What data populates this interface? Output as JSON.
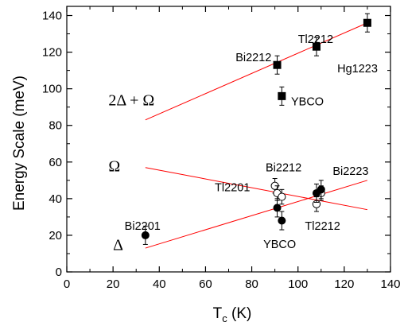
{
  "chart_data": {
    "type": "scatter",
    "xlabel": "T",
    "xlabel_subscript": "c",
    "xlabel_unit": " (K)",
    "ylabel": "Energy Scale (meV)",
    "xlim": [
      0,
      140
    ],
    "ylim": [
      0,
      145
    ],
    "xticks": [
      0,
      20,
      40,
      60,
      80,
      100,
      120,
      140
    ],
    "yticks": [
      0,
      20,
      40,
      60,
      80,
      100,
      120,
      140
    ],
    "grid": false,
    "legend": "none",
    "series": [
      {
        "id": "two_delta_plus_omega",
        "marker": "filled-square",
        "color": "#000000",
        "points": [
          {
            "x": 91,
            "y": 113,
            "err": 5
          },
          {
            "x": 93,
            "y": 96,
            "err": 5
          },
          {
            "x": 108,
            "y": 123,
            "err": 5
          },
          {
            "x": 130,
            "y": 136,
            "err": 5
          }
        ]
      },
      {
        "id": "omega",
        "marker": "open-circle",
        "color": "#000000",
        "points": [
          {
            "x": 90,
            "y": 47,
            "err": 4
          },
          {
            "x": 91,
            "y": 43,
            "err": 4
          },
          {
            "x": 93,
            "y": 41,
            "err": 4
          },
          {
            "x": 108,
            "y": 37,
            "err": 4
          },
          {
            "x": 110,
            "y": 43,
            "err": 4
          }
        ]
      },
      {
        "id": "delta",
        "marker": "filled-circle",
        "color": "#000000",
        "points": [
          {
            "x": 34,
            "y": 20,
            "err": 5
          },
          {
            "x": 91,
            "y": 35,
            "err": 5
          },
          {
            "x": 93,
            "y": 28,
            "err": 5
          },
          {
            "x": 108,
            "y": 43,
            "err": 5
          },
          {
            "x": 110,
            "y": 45,
            "err": 5
          }
        ]
      }
    ],
    "fit_lines": [
      {
        "id": "fit_two_delta_plus_omega",
        "color": "#ff0000",
        "from": [
          34,
          83
        ],
        "to": [
          130,
          136
        ]
      },
      {
        "id": "fit_omega",
        "color": "#ff0000",
        "from": [
          34,
          57
        ],
        "to": [
          130,
          34
        ]
      },
      {
        "id": "fit_delta",
        "color": "#ff0000",
        "from": [
          34,
          13
        ],
        "to": [
          130,
          50
        ]
      }
    ],
    "annotations": [
      {
        "id": "bi2212-top",
        "text": "Bi2212",
        "x": 73,
        "y": 115
      },
      {
        "id": "tl2212-top",
        "text": "Tl2212",
        "x": 100,
        "y": 125
      },
      {
        "id": "hg1223",
        "text": "Hg1223",
        "x": 117,
        "y": 109
      },
      {
        "id": "ybco-top",
        "text": "YBCO",
        "x": 97,
        "y": 91
      },
      {
        "id": "bi2212-mid",
        "text": "Bi2212",
        "x": 86,
        "y": 55
      },
      {
        "id": "bi2223",
        "text": "Bi2223",
        "x": 115,
        "y": 53
      },
      {
        "id": "tl2201",
        "text": "Tl2201",
        "x": 64,
        "y": 44
      },
      {
        "id": "bi2201",
        "text": "Bi2201",
        "x": 25,
        "y": 23
      },
      {
        "id": "tl2212-bottom",
        "text": "Tl2212",
        "x": 103,
        "y": 23
      },
      {
        "id": "ybco-bottom",
        "text": "YBCO",
        "x": 85,
        "y": 13
      }
    ],
    "greek_labels": [
      {
        "id": "two-delta-plus-omega",
        "text": "2Δ + Ω",
        "x": 18,
        "y": 91
      },
      {
        "id": "omega",
        "text": "Ω",
        "x": 18,
        "y": 55
      },
      {
        "id": "delta",
        "text": "Δ",
        "x": 20,
        "y": 12
      }
    ]
  }
}
